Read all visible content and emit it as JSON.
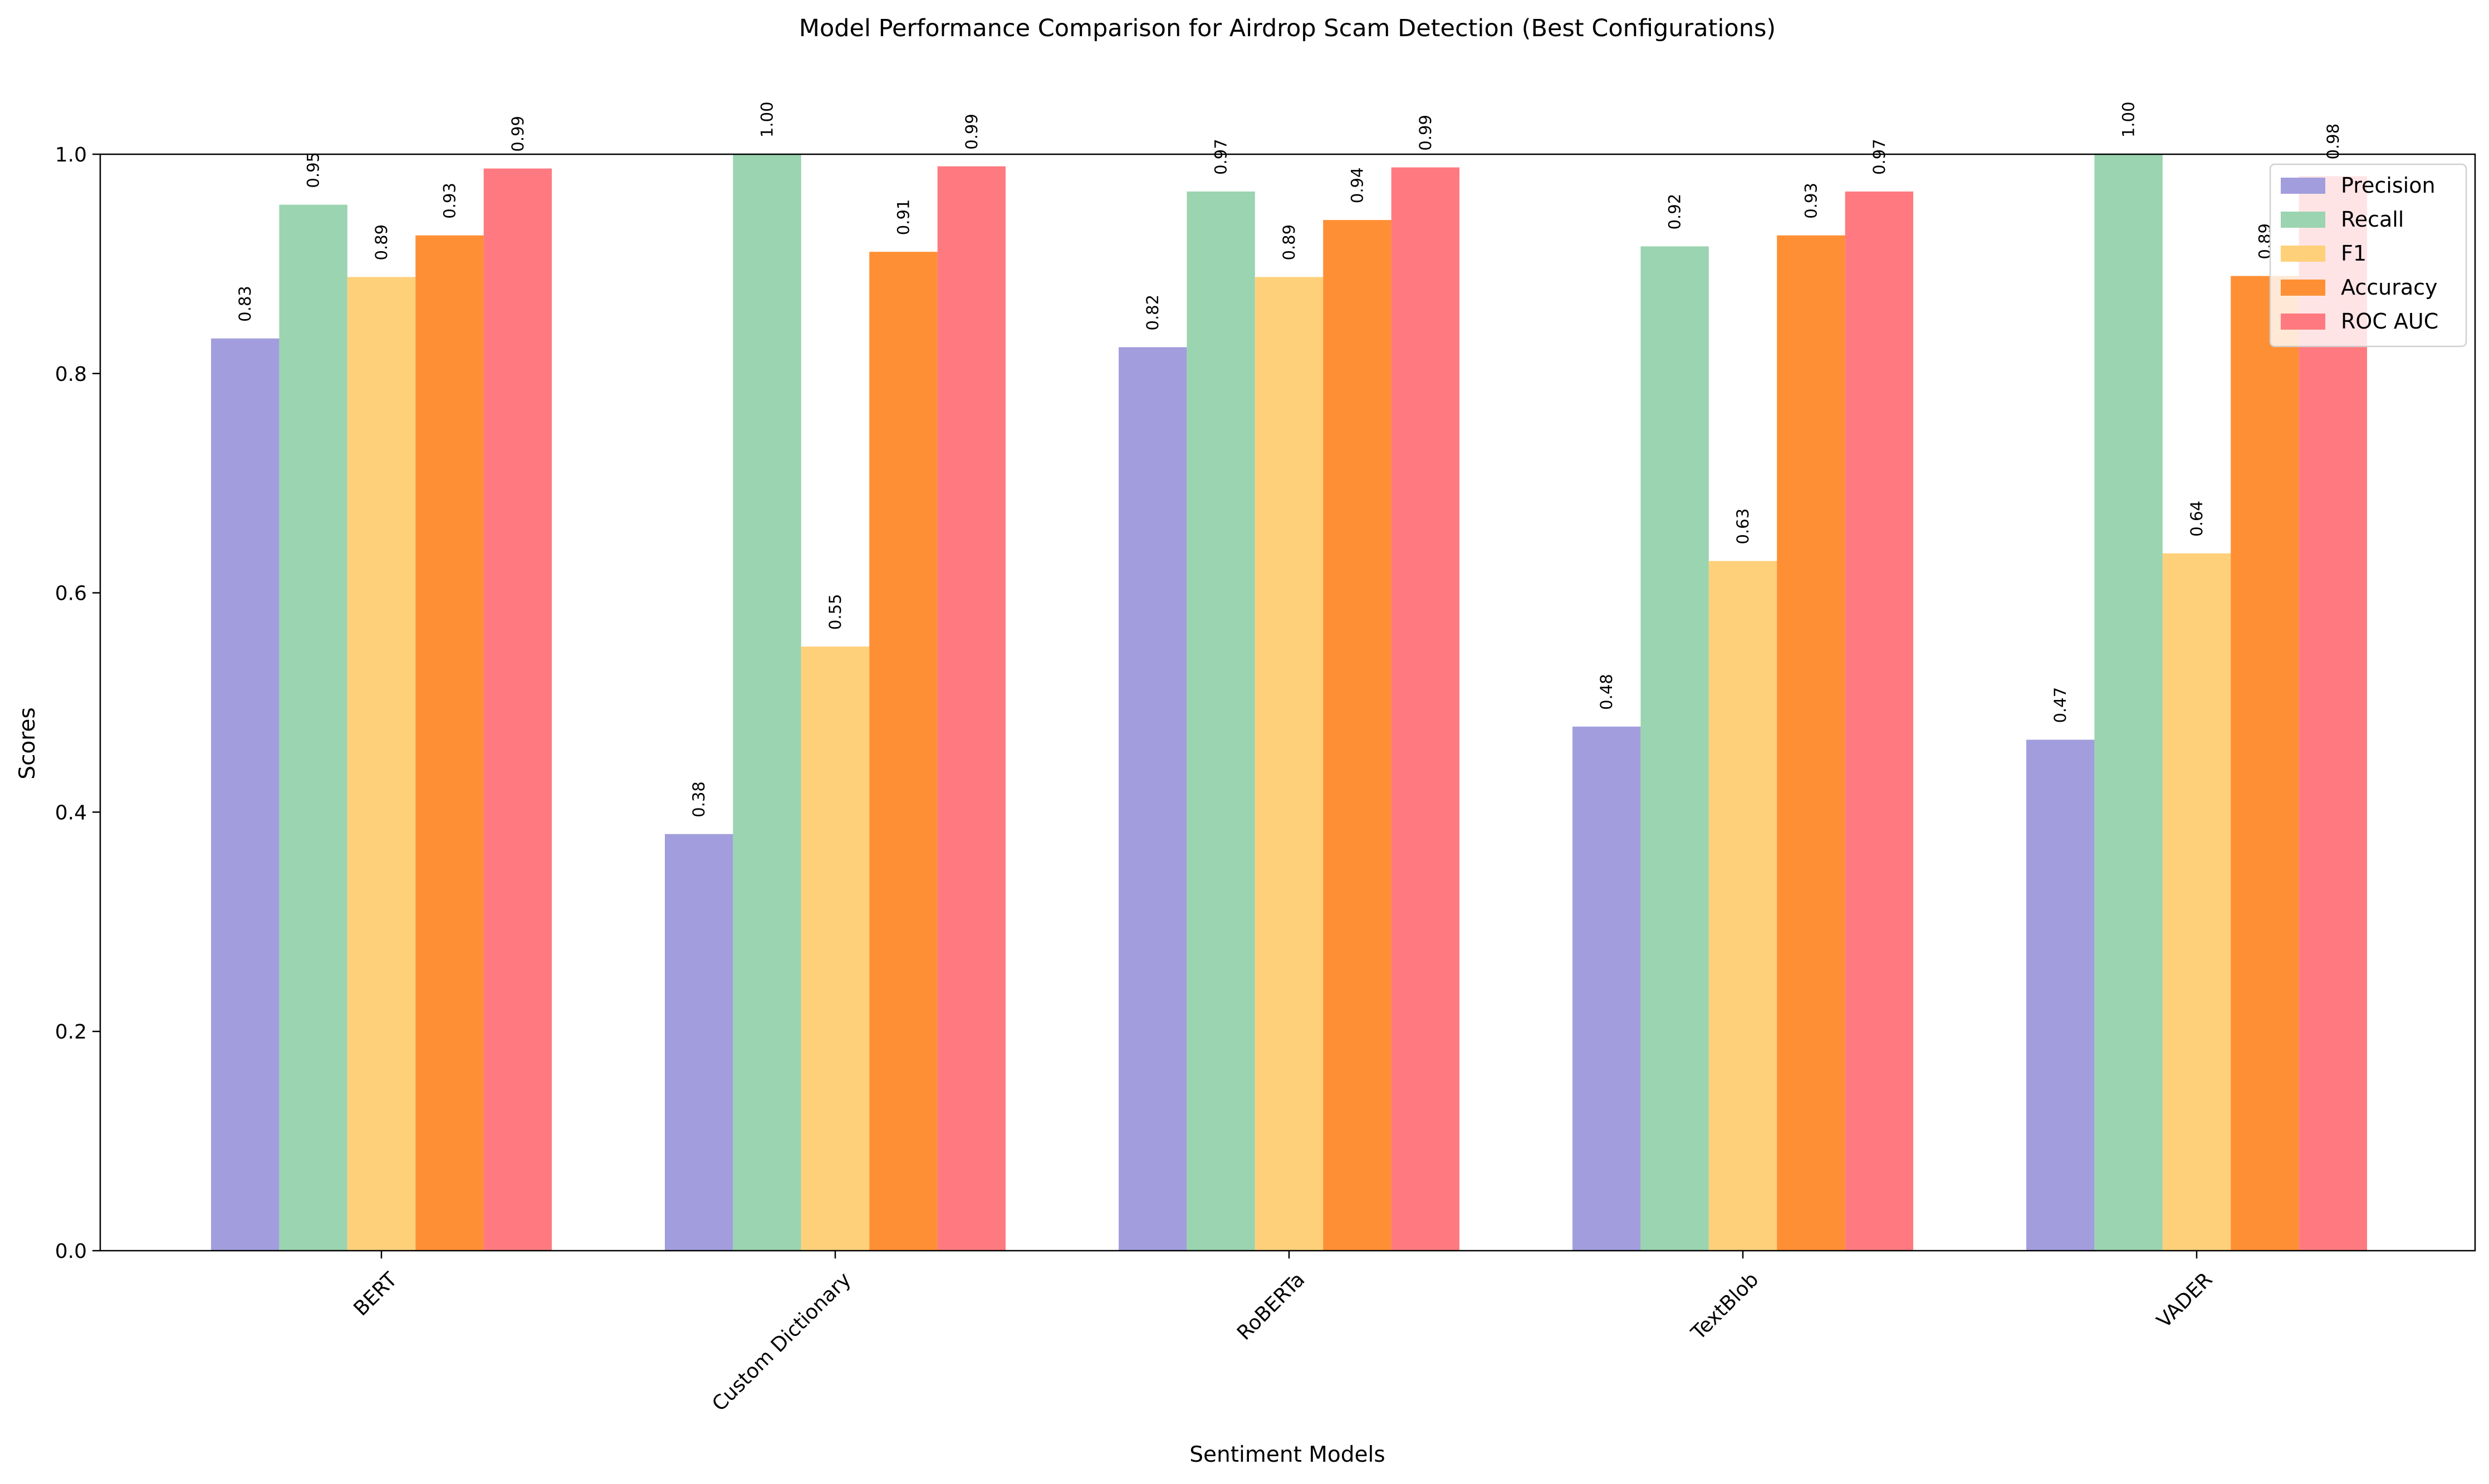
{
  "chart_data": {
    "type": "bar",
    "title": "Model Performance Comparison for Airdrop Scam Detection (Best Configurations)",
    "xlabel": "Sentiment Models",
    "ylabel": "Scores",
    "ylim": [
      0,
      1.0
    ],
    "yticks": [
      "0.0",
      "0.2",
      "0.4",
      "0.6",
      "0.8",
      "1.0"
    ],
    "categories": [
      "BERT",
      "Custom Dictionary",
      "RoBERTa",
      "TextBlob",
      "VADER"
    ],
    "legend_position": "top-right",
    "grid": false,
    "series": [
      {
        "name": "Precision",
        "color": "#a29edd",
        "values": [
          0.832,
          0.38,
          0.824,
          0.478,
          0.466
        ],
        "labels": [
          "0.83",
          "0.38",
          "0.82",
          "0.48",
          "0.47"
        ]
      },
      {
        "name": "Recall",
        "color": "#9bd4b0",
        "values": [
          0.954,
          1.0,
          0.966,
          0.916,
          1.0
        ],
        "labels": [
          "0.95",
          "1.00",
          "0.97",
          "0.92",
          "1.00"
        ]
      },
      {
        "name": "F1",
        "color": "#ffd07a",
        "values": [
          0.888,
          0.551,
          0.888,
          0.629,
          0.636
        ],
        "labels": [
          "0.89",
          "0.55",
          "0.89",
          "0.63",
          "0.64"
        ]
      },
      {
        "name": "Accuracy",
        "color": "#ff8f34",
        "values": [
          0.926,
          0.911,
          0.94,
          0.926,
          0.889
        ],
        "labels": [
          "0.93",
          "0.91",
          "0.94",
          "0.93",
          "0.89"
        ]
      },
      {
        "name": "ROC AUC",
        "color": "#ff7a80",
        "values": [
          0.987,
          0.989,
          0.988,
          0.966,
          0.98
        ],
        "labels": [
          "0.99",
          "0.99",
          "0.99",
          "0.97",
          "0.98"
        ]
      }
    ]
  }
}
